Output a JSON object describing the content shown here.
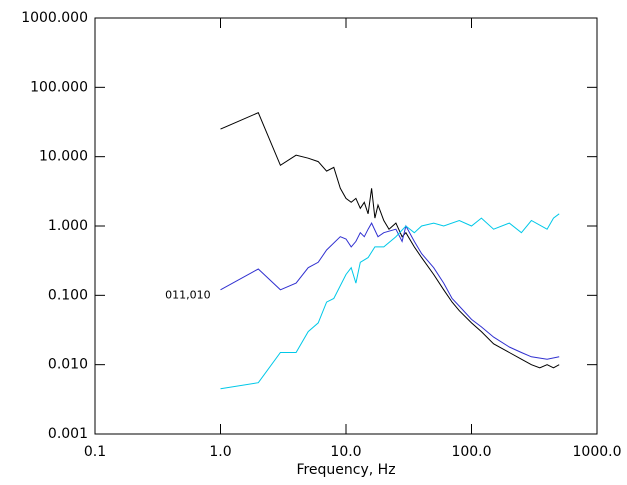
{
  "chart_data": {
    "type": "line",
    "x_label": "Frequency, Hz",
    "log_x": true,
    "log_y": true,
    "annotation": "011,010",
    "annotation_x": 0.55,
    "annotation_y": 0.1,
    "xlim": [
      0.1,
      1000
    ],
    "ylim": [
      0.001,
      1000
    ],
    "xticks": [
      0.1,
      {
        "value": 1,
        "label": "1.0"
      },
      {
        "value": 10,
        "label": "10.0"
      },
      {
        "value": 100,
        "label": "100.0"
      },
      {
        "value": 1000,
        "label": "1000.0"
      }
    ],
    "yticks": [
      {
        "value": 1000,
        "label": "1000.000"
      },
      {
        "value": 100,
        "label": "100.000"
      },
      {
        "value": 10,
        "label": "10.000"
      },
      {
        "value": 1,
        "label": "1.000"
      },
      {
        "value": 0.1,
        "label": "0.100"
      },
      {
        "value": 0.01,
        "label": "0.010"
      },
      0.001
    ],
    "series": [
      {
        "color": "#000000",
        "x": [
          1,
          2,
          3,
          4,
          5,
          6,
          7,
          8,
          9,
          10,
          11,
          12,
          13,
          14,
          15,
          16,
          17,
          18,
          20,
          22,
          25,
          28,
          30,
          35,
          40,
          50,
          60,
          70,
          80,
          100,
          120,
          150,
          200,
          250,
          300,
          350,
          400,
          450,
          500
        ],
        "values": [
          25,
          43,
          7.5,
          10.5,
          9.5,
          8.5,
          6.2,
          7,
          3.5,
          2.5,
          2.2,
          2.5,
          1.8,
          2.2,
          1.5,
          3.5,
          1.3,
          2,
          1.2,
          0.9,
          1.1,
          0.7,
          0.8,
          0.5,
          0.35,
          0.2,
          0.12,
          0.08,
          0.06,
          0.04,
          0.03,
          0.02,
          0.015,
          0.012,
          0.01,
          0.009,
          0.01,
          0.009,
          0.01
        ]
      },
      {
        "color": "#3030d0",
        "x": [
          1,
          2,
          3,
          4,
          5,
          6,
          7,
          9,
          10,
          11,
          12,
          13,
          14,
          15,
          16,
          18,
          20,
          25,
          28,
          30,
          35,
          40,
          50,
          60,
          70,
          80,
          100,
          120,
          150,
          200,
          250,
          300,
          400,
          500
        ],
        "values": [
          0.12,
          0.24,
          0.12,
          0.15,
          0.25,
          0.3,
          0.45,
          0.7,
          0.65,
          0.5,
          0.6,
          0.8,
          0.7,
          0.9,
          1.1,
          0.7,
          0.8,
          0.9,
          0.6,
          1.0,
          0.6,
          0.4,
          0.25,
          0.15,
          0.09,
          0.07,
          0.045,
          0.035,
          0.025,
          0.018,
          0.015,
          0.013,
          0.012,
          0.013
        ]
      },
      {
        "color": "#00c8e8",
        "x": [
          1,
          2,
          3,
          4,
          5,
          6,
          7,
          8,
          10,
          11,
          12,
          13,
          15,
          17,
          20,
          25,
          30,
          35,
          40,
          50,
          60,
          80,
          100,
          120,
          150,
          200,
          250,
          300,
          400,
          450,
          500
        ],
        "values": [
          0.0045,
          0.0055,
          0.015,
          0.015,
          0.03,
          0.04,
          0.08,
          0.09,
          0.2,
          0.25,
          0.15,
          0.3,
          0.35,
          0.5,
          0.5,
          0.7,
          1.0,
          0.8,
          1.0,
          1.1,
          1.0,
          1.2,
          1.0,
          1.3,
          0.9,
          1.1,
          0.8,
          1.2,
          0.9,
          1.3,
          1.5
        ]
      }
    ]
  }
}
